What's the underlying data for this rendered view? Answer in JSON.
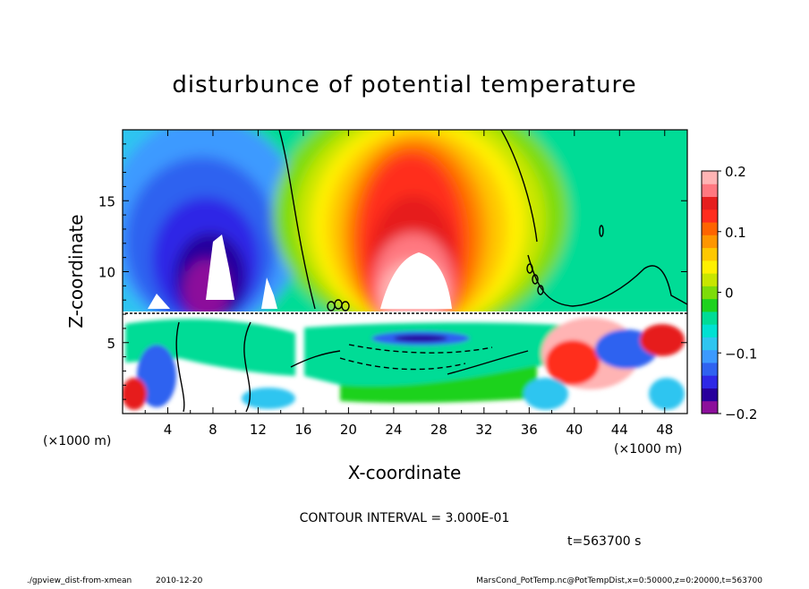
{
  "chart_data": {
    "type": "heatmap",
    "title": "disturbunce of potential temperature",
    "xlabel": "X-coordinate",
    "ylabel": "Z-coordinate",
    "x_unit": "(×1000 m)",
    "y_unit": "(×1000 m)",
    "xlim": [
      0,
      50
    ],
    "ylim": [
      0,
      20
    ],
    "x_ticks": [
      "4",
      "8",
      "12",
      "16",
      "20",
      "24",
      "28",
      "32",
      "36",
      "40",
      "44",
      "48"
    ],
    "y_ticks": [
      "5",
      "10",
      "15"
    ],
    "x_tick_values": [
      4,
      8,
      12,
      16,
      20,
      24,
      28,
      32,
      36,
      40,
      44,
      48
    ],
    "y_tick_values": [
      5,
      10,
      15
    ],
    "colorbar": {
      "min": -0.2,
      "max": 0.2,
      "labels": [
        "0.2",
        "0.1",
        "0",
        "−0.1",
        "−0.2"
      ],
      "values": [
        0.2,
        0.1,
        0,
        -0.1,
        -0.2
      ],
      "colors": [
        "#8c0f9b",
        "#28009c",
        "#2e28e6",
        "#2f62f0",
        "#3c9aff",
        "#2fc5f0",
        "#00e1d2",
        "#00dc96",
        "#1ed21e",
        "#7ddc0a",
        "#c8e600",
        "#fff000",
        "#ffc800",
        "#ff9600",
        "#ff6400",
        "#ff2d1e",
        "#e61e1e",
        "#ff7880",
        "#ffb4b4"
      ]
    },
    "field": {
      "description": "",
      "interface_height": 7.3,
      "warm_core_center_x": 27,
      "cold_core_center_x": 8
    },
    "contour_interval_text": "CONTOUR INTERVAL = 3.000E-01"
  },
  "footer": {
    "time_label": "t=563700 s",
    "script_label": "./gpview_dist-from-xmean",
    "date_label": "2010-12-20",
    "source_label": "MarsCond_PotTemp.nc@PotTempDist,x=0:50000,z=0:20000,t=563700"
  }
}
